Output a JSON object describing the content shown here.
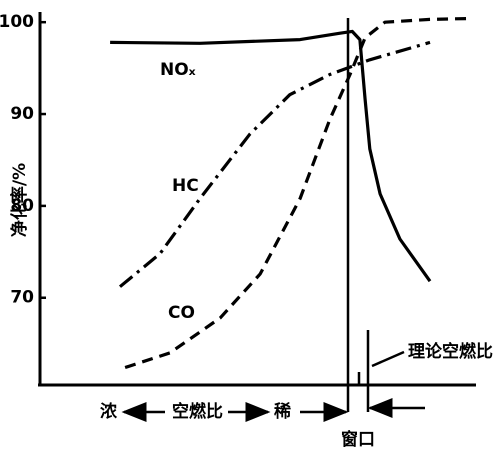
{
  "chart_data": {
    "type": "line",
    "y_label": "净化率/%",
    "ylim": [
      60.5,
      101
    ],
    "yticks": [
      70,
      80,
      90,
      100
    ],
    "xlim": [
      0,
      100
    ],
    "series": [
      {
        "name": "NOₓ",
        "color": "#000000",
        "dash": "solid",
        "x": [
          16.3,
          37.2,
          60.5,
          69.8,
          72.6,
          74.4,
          75.6,
          76.7,
          79.1,
          83.7,
          90.7
        ],
        "values": [
          97.8,
          97.7,
          98.1,
          98.8,
          99.0,
          98.1,
          91.6,
          86.2,
          81.3,
          76.4,
          71.8
        ]
      },
      {
        "name": "HC",
        "color": "#000000",
        "dash": "dashdot",
        "x": [
          18.6,
          27.9,
          37.2,
          48.8,
          58.1,
          67.4,
          76.7,
          90.7
        ],
        "values": [
          71.2,
          74.8,
          80.8,
          87.8,
          92.1,
          94.3,
          95.9,
          97.8
        ]
      },
      {
        "name": "CO",
        "color": "#000000",
        "dash": "dashed",
        "x": [
          19.8,
          30.2,
          41.9,
          51.2,
          60.5,
          67.4,
          72.1,
          75.6,
          80.2,
          90.7,
          100
        ],
        "values": [
          62.4,
          64.0,
          67.8,
          72.6,
          80.8,
          89.4,
          94.3,
          98.3,
          100.0,
          100.3,
          100.4
        ]
      }
    ],
    "annotations": {
      "rich": "浓",
      "afr": "空燃比",
      "lean": "稀",
      "window": "窗口",
      "stoich": "理论空燃比"
    }
  }
}
